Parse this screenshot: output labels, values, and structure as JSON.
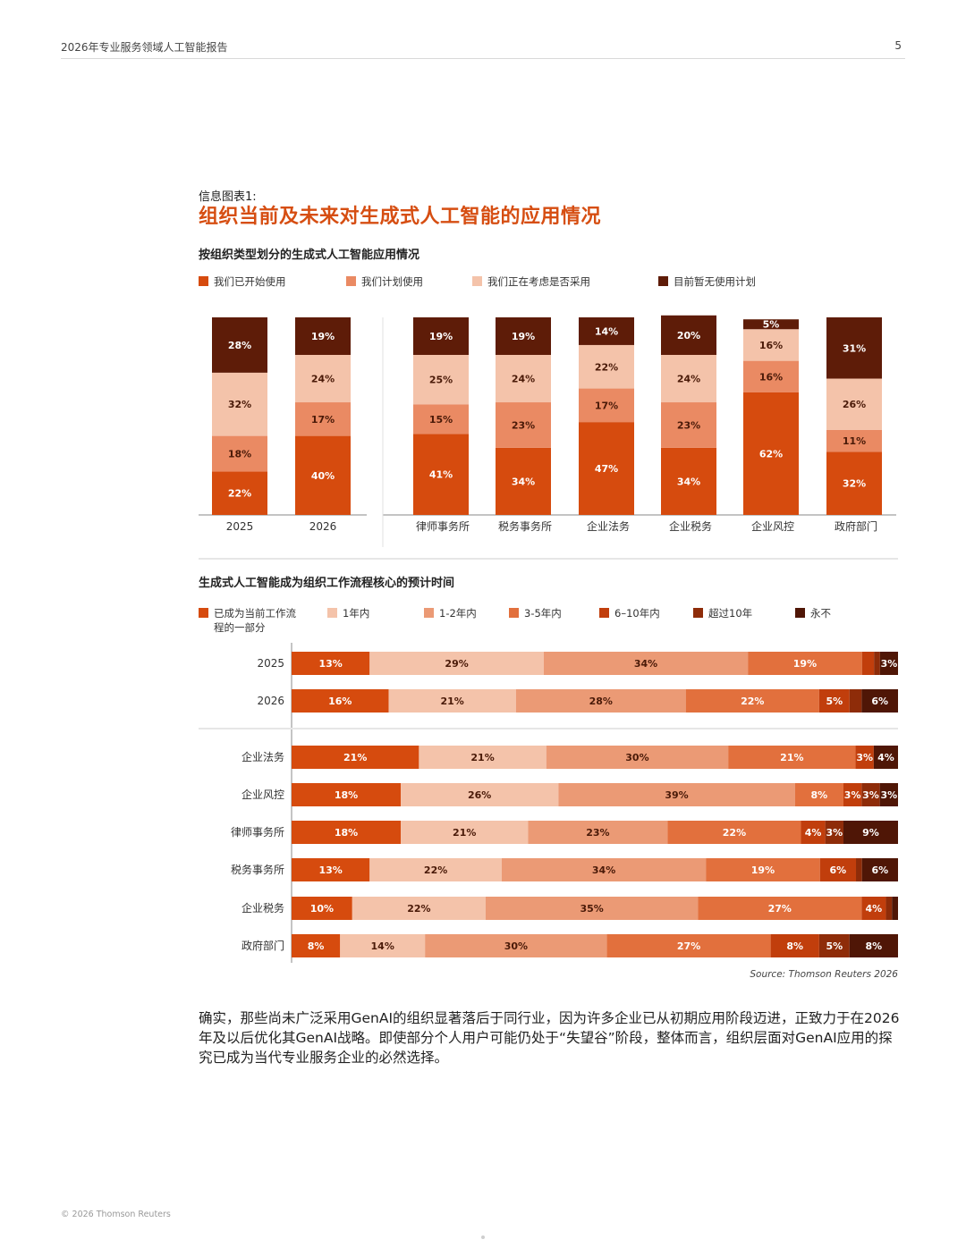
{
  "header": {
    "report_title": "2026年专业服务领域人工智能报告",
    "page_number": "5"
  },
  "figure": {
    "label": "信息图表1:",
    "title": "组织当前及未来对生成式人工智能的应用情况"
  },
  "footer": {
    "copyright": "© 2026 Thomson Reuters"
  },
  "source_note": "Source: Thomson Reuters 2026",
  "body_text": "确实，那些尚未广泛采用GenAI的组织显著落后于同行业，因为许多企业已从初期应用阶段迈进，正致力于在2026年及以后优化其GenAI战略。即使部分个人用户可能仍处于“失望谷”阶段，整体而言，组织层面对GenAI应用的探究已成为当代专业服务企业的必然选择。",
  "chart_data": [
    {
      "type": "bar",
      "stacked": true,
      "orientation": "vertical",
      "title": "按组织类型划分的生成式人工智能应用情况",
      "legend_position": "top",
      "categories": [
        "2025",
        "2026",
        "律师事务所",
        "税务事务所",
        "企业法务",
        "企业税务",
        "企业风控",
        "政府部门"
      ],
      "series": [
        {
          "name": "我们已开始使用",
          "color": "#d64b0e",
          "values": [
            22,
            40,
            41,
            34,
            47,
            34,
            62,
            32
          ]
        },
        {
          "name": "我们计划使用",
          "color": "#ea8a63",
          "values": [
            18,
            17,
            15,
            23,
            17,
            23,
            16,
            11
          ]
        },
        {
          "name": "我们正在考虑是否采用",
          "color": "#f4c3aa",
          "values": [
            32,
            24,
            25,
            24,
            22,
            24,
            16,
            26
          ]
        },
        {
          "name": "目前暂无使用计划",
          "color": "#5e1c08",
          "values": [
            28,
            19,
            19,
            19,
            14,
            20,
            5,
            31
          ]
        }
      ],
      "ylim": [
        0,
        100
      ],
      "grid": false
    },
    {
      "type": "bar",
      "stacked": true,
      "orientation": "horizontal",
      "title": "生成式人工智能成为组织工作流程核心的预计时间",
      "legend_position": "top",
      "categories": [
        "2025",
        "2026",
        "企业法务",
        "企业风控",
        "律师事务所",
        "税务事务所",
        "企业税务",
        "政府部门"
      ],
      "series": [
        {
          "name": "已成为当前工作流程的一部分",
          "color": "#d64b0e",
          "values": [
            13,
            16,
            21,
            18,
            18,
            13,
            10,
            8
          ]
        },
        {
          "name": "1年内",
          "color": "#f4c3aa",
          "values": [
            29,
            21,
            21,
            26,
            21,
            22,
            22,
            14
          ]
        },
        {
          "name": "1-2年内",
          "color": "#eb9a75",
          "values": [
            34,
            28,
            30,
            39,
            23,
            34,
            35,
            30
          ]
        },
        {
          "name": "3-5年内",
          "color": "#e2703d",
          "values": [
            19,
            22,
            21,
            8,
            22,
            19,
            27,
            27
          ]
        },
        {
          "name": "6–10年内",
          "color": "#c13e0c",
          "values": [
            2,
            5,
            3,
            3,
            4,
            6,
            4,
            8
          ]
        },
        {
          "name": "超过10年",
          "color": "#8e2c09",
          "values": [
            1,
            2,
            0,
            3,
            3,
            1,
            1,
            5
          ]
        },
        {
          "name": "永不",
          "color": "#4f1606",
          "values": [
            3,
            6,
            4,
            3,
            9,
            6,
            1,
            8
          ]
        }
      ],
      "xlim": [
        0,
        100
      ],
      "grid": false
    }
  ]
}
